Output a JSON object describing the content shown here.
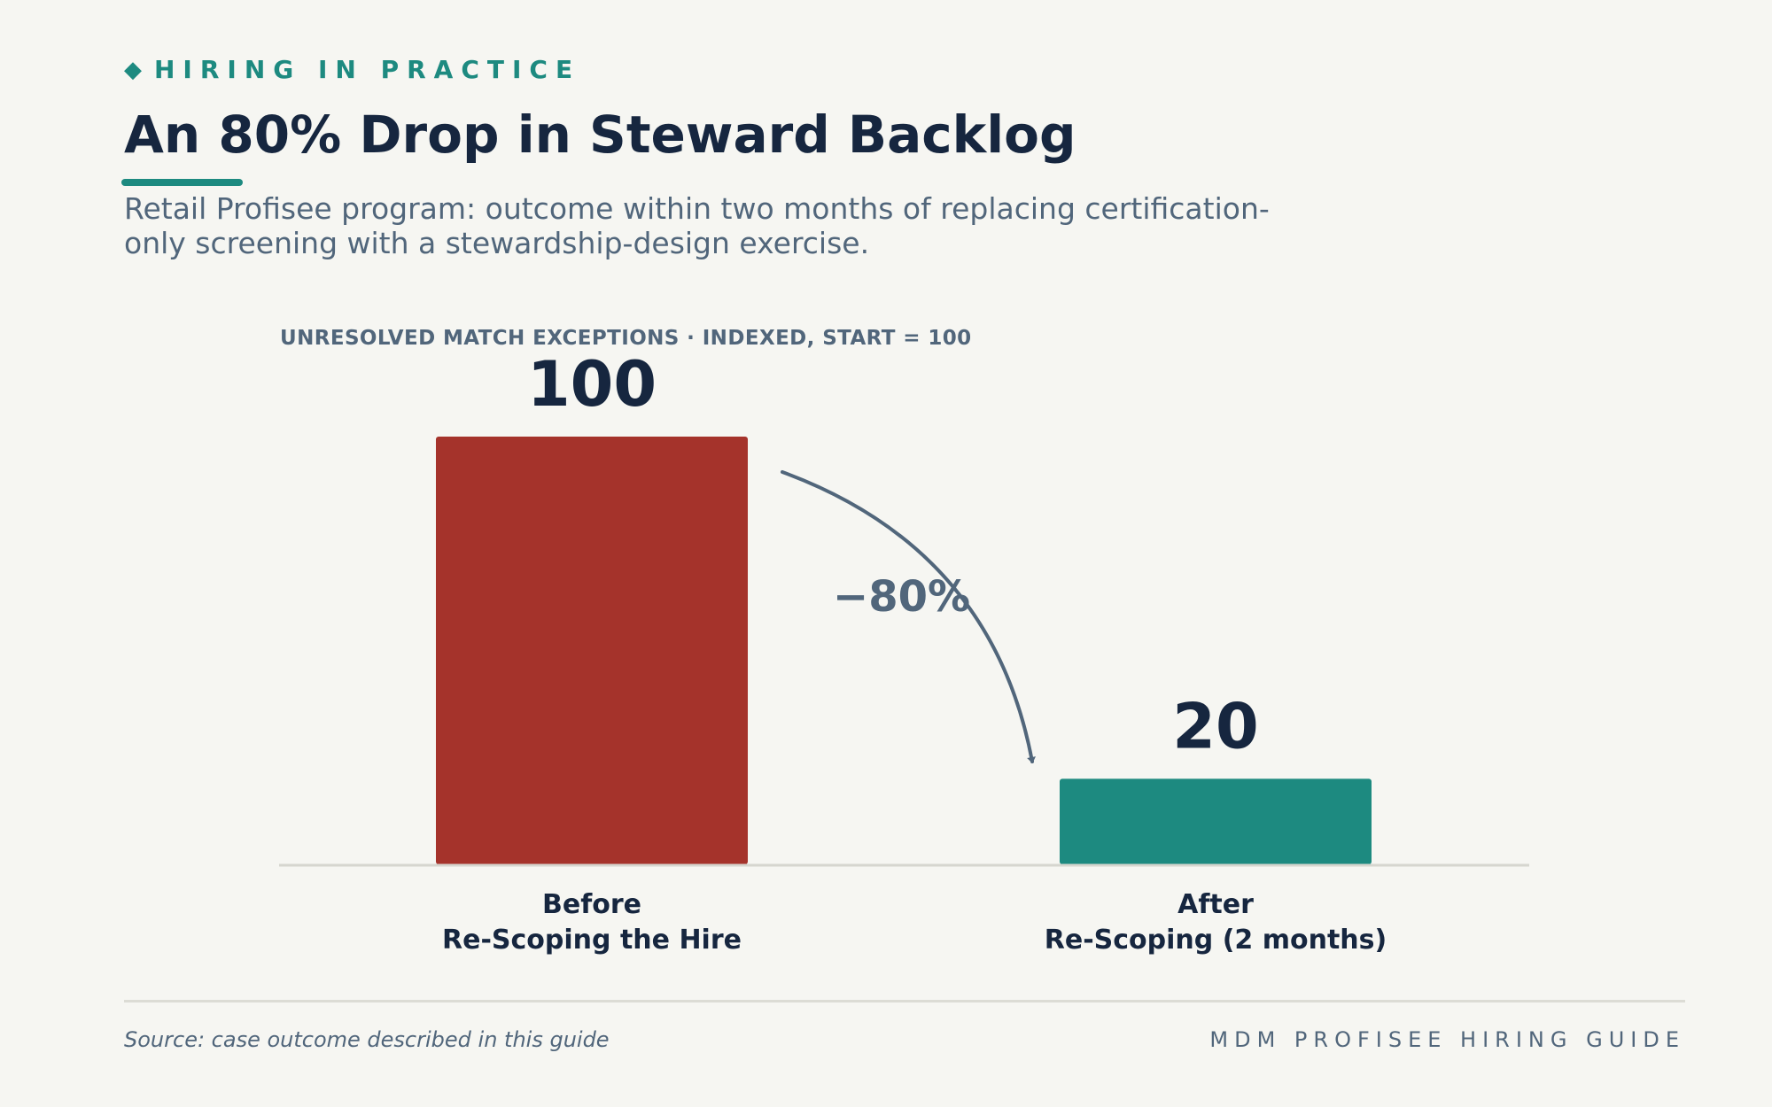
{
  "kicker": {
    "icon": "diamond-icon",
    "icon_glyph": "◆",
    "text": "HIRING IN PRACTICE"
  },
  "title": "An 80% Drop in Steward Backlog",
  "subtitle": "Retail Profisee program: outcome within two months of replacing certification-only screening with a stewardship-design exercise.",
  "colors": {
    "accent": "#1d8a80",
    "before_bar": "#a5332b",
    "after_bar": "#1d8a80",
    "text_dark": "#16263f",
    "text_muted": "#51667b"
  },
  "chart_data": {
    "type": "bar",
    "title": "UNRESOLVED MATCH EXCEPTIONS · INDEXED, START = 100",
    "categories": [
      [
        "Before",
        "Re-Scoping the Hire"
      ],
      [
        "After",
        "Re-Scoping (2 months)"
      ]
    ],
    "values": [
      100,
      20
    ],
    "value_labels": [
      "100",
      "20"
    ],
    "bar_colors": [
      "#a5332b",
      "#1d8a80"
    ],
    "ylim": [
      0,
      100
    ],
    "annotation": {
      "text": "−80%",
      "from": 0,
      "to": 1
    },
    "grid": false,
    "legend": "none"
  },
  "footer": {
    "source": "Source: case outcome described in this guide",
    "brand": "MDM PROFISEE HIRING GUIDE"
  }
}
